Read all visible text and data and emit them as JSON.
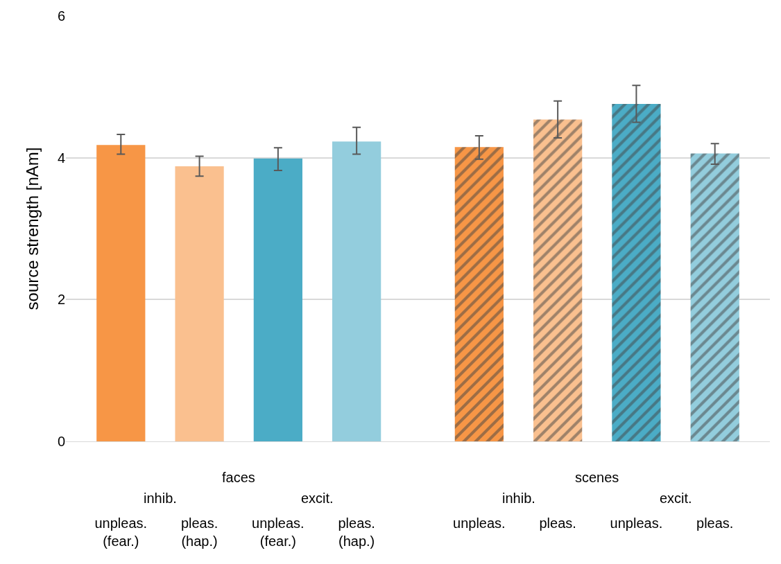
{
  "chart_data": {
    "type": "bar",
    "ylabel": "source strength [nAm]",
    "categories": [
      "unpleas.\n(fear.)",
      "pleas.\n(hap.)",
      "unpleas.\n(fear.)",
      "pleas.\n(hap.)",
      "unpleas.",
      "pleas.",
      "unpleas.",
      "pleas."
    ],
    "values": [
      4.18,
      3.88,
      3.99,
      4.23,
      4.15,
      4.54,
      4.76,
      4.06
    ],
    "errors": [
      [
        4.05,
        4.33
      ],
      [
        3.74,
        4.02
      ],
      [
        3.82,
        4.14
      ],
      [
        4.05,
        4.43
      ],
      [
        3.98,
        4.31
      ],
      [
        4.28,
        4.8
      ],
      [
        4.5,
        5.02
      ],
      [
        3.91,
        4.2
      ]
    ],
    "colors": [
      "#f79646",
      "#fac08f",
      "#4bacc6",
      "#93cddd",
      "#f79646",
      "#fac08f",
      "#4bacc6",
      "#93cddd"
    ],
    "annotations": [
      "faces",
      "scenes",
      "inhib.",
      "excit.",
      "inhib.",
      "excit."
    ],
    "ylim": [
      0,
      6
    ],
    "yticks": [
      0,
      2,
      4,
      6
    ],
    "grid": "y"
  }
}
